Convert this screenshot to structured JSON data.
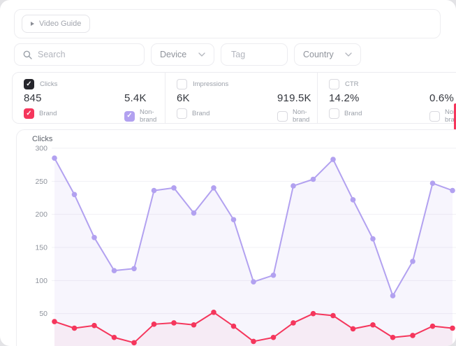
{
  "toolbar": {
    "video_guide": "Video Guide"
  },
  "filters": {
    "search_placeholder": "Search",
    "device": "Device",
    "tag_placeholder": "Tag",
    "country": "Country"
  },
  "metrics": [
    {
      "name": "Clicks",
      "checked": true,
      "brand_value": "845",
      "nonbrand_value": "5.4K",
      "brand_label": "Brand",
      "nonbrand_label": "Non-brand",
      "brand_checked": true,
      "nonbrand_checked": true
    },
    {
      "name": "Impressions",
      "checked": false,
      "brand_value": "6K",
      "nonbrand_value": "919.5K",
      "brand_label": "Brand",
      "nonbrand_label": "Non-brand",
      "brand_checked": false,
      "nonbrand_checked": false
    },
    {
      "name": "CTR",
      "checked": false,
      "brand_value": "14.2%",
      "nonbrand_value": "0.6%",
      "brand_label": "Brand",
      "nonbrand_label": "Non-brand",
      "brand_checked": false,
      "nonbrand_checked": false
    }
  ],
  "colors": {
    "brand": "#f5365c",
    "nonbrand": "#b2a1f0",
    "checkbox_dark": "#26262c",
    "grid": "#f1f0f5"
  },
  "chart_data": {
    "type": "line",
    "title": "Clicks",
    "xlabel": "",
    "ylabel": "",
    "x": [
      1,
      2,
      3,
      4,
      5,
      6,
      7,
      8,
      9,
      10,
      11,
      12,
      13,
      14,
      15,
      16,
      17,
      18,
      19,
      20,
      21
    ],
    "ylim": [
      0,
      300
    ],
    "yticks": [
      50,
      100,
      150,
      200,
      250,
      300
    ],
    "grid": true,
    "legend_position": "none",
    "markers": true,
    "area_fill": true,
    "series": [
      {
        "name": "Non-brand",
        "color": "#b2a1f0",
        "fill": "rgba(178,161,240,0.10)",
        "values": [
          285,
          230,
          165,
          115,
          118,
          236,
          240,
          202,
          240,
          192,
          98,
          108,
          243,
          253,
          283,
          222,
          163,
          77,
          129,
          247,
          236
        ]
      },
      {
        "name": "Brand",
        "color": "#f5365c",
        "fill": "rgba(245,54,92,0.05)",
        "values": [
          38,
          28,
          32,
          14,
          6,
          34,
          36,
          33,
          52,
          31,
          8,
          14,
          36,
          50,
          47,
          27,
          33,
          14,
          17,
          31,
          28
        ]
      }
    ]
  }
}
